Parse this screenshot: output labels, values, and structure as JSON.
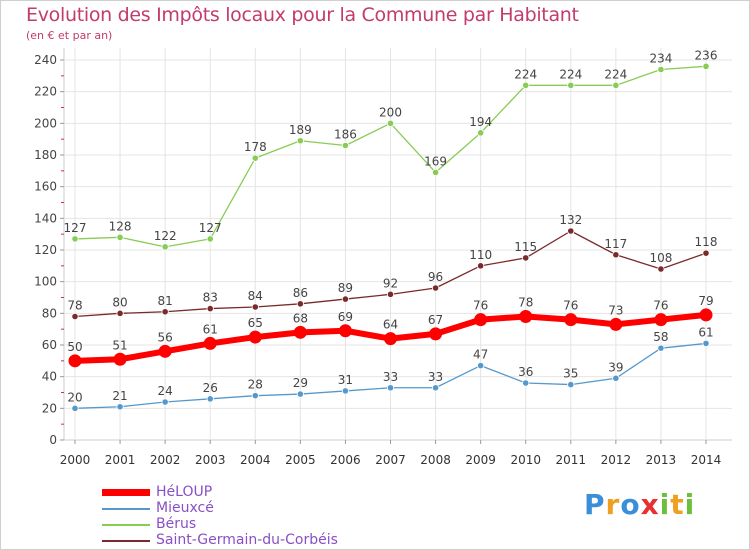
{
  "title": "Evolution des Impôts locaux pour la Commune par Habitant",
  "subtitle": "(en € et par an)",
  "logo": {
    "text": "Proxiti",
    "letters": [
      {
        "ch": "P",
        "color": "#3b8fd9"
      },
      {
        "ch": "r",
        "color": "#f0a020"
      },
      {
        "ch": "o",
        "color": "#3b8fd9"
      },
      {
        "ch": "x",
        "color": "#e83030"
      },
      {
        "ch": "i",
        "color": "#6bbf3a"
      },
      {
        "ch": "t",
        "color": "#f0a020"
      },
      {
        "ch": "i",
        "color": "#6bbf3a"
      }
    ]
  },
  "chart_data": {
    "type": "line",
    "title": "Evolution des Impôts locaux pour la Commune par Habitant",
    "subtitle": "(en € et par an)",
    "xlabel": "",
    "ylabel": "",
    "x": [
      "2000",
      "2001",
      "2002",
      "2003",
      "2004",
      "2005",
      "2006",
      "2007",
      "2008",
      "2009",
      "2010",
      "2011",
      "2012",
      "2013",
      "2014"
    ],
    "ylim": [
      0,
      240
    ],
    "yticks": [
      0,
      20,
      40,
      60,
      80,
      100,
      120,
      140,
      160,
      180,
      200,
      220,
      240
    ],
    "grid": true,
    "legend_position": "bottom-left",
    "series": [
      {
        "name": "HéLOUP",
        "color": "#ff0000",
        "values": [
          50,
          51,
          56,
          61,
          65,
          68,
          69,
          64,
          67,
          76,
          78,
          76,
          73,
          76,
          79
        ]
      },
      {
        "name": "Mieuxcé",
        "color": "#5599cc",
        "values": [
          20,
          21,
          24,
          26,
          28,
          29,
          31,
          33,
          33,
          47,
          36,
          35,
          39,
          58,
          61
        ]
      },
      {
        "name": "Bérus",
        "color": "#88cc55",
        "values": [
          127,
          128,
          122,
          127,
          178,
          189,
          186,
          200,
          169,
          194,
          224,
          224,
          224,
          234,
          236
        ]
      },
      {
        "name": "Saint-Germain-du-Corbéis",
        "color": "#7a2a2a",
        "values": [
          78,
          80,
          81,
          83,
          84,
          86,
          89,
          92,
          96,
          110,
          115,
          132,
          117,
          108,
          118
        ]
      }
    ]
  }
}
